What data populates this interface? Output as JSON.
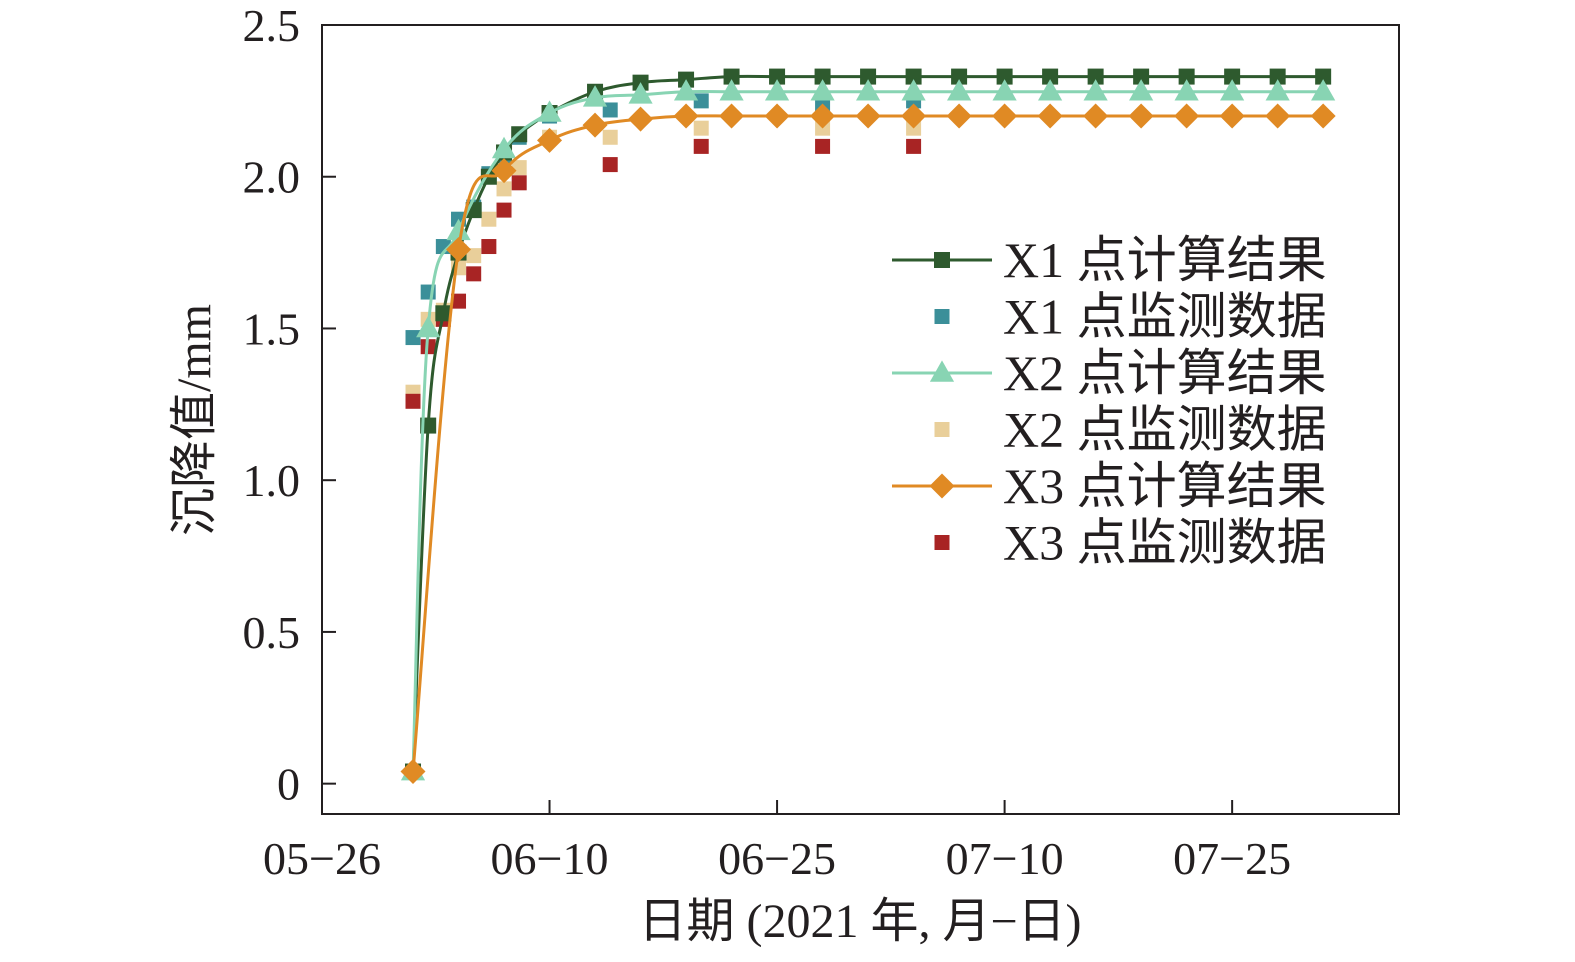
{
  "chart_data": {
    "type": "line",
    "xlabel": "日期 (2021 年, 月−日)",
    "ylabel": "沉降值/mm",
    "x_ticks": [
      "05−26",
      "06−10",
      "06−25",
      "07−10",
      "07−25"
    ],
    "y_ticks": [
      "0",
      "0.5",
      "1.0",
      "1.5",
      "2.0",
      "2.5"
    ],
    "xlim": [
      "2021-05-26",
      "2021-08-05"
    ],
    "ylim": [
      -0.1,
      2.5
    ],
    "grid": false,
    "legend_position": "right",
    "series": [
      {
        "name": "X1 点计算结果",
        "kind": "line",
        "marker": "square",
        "color": "#2e5a2e",
        "x": [
          "2021-06-01",
          "2021-06-02",
          "2021-06-03",
          "2021-06-04",
          "2021-06-05",
          "2021-06-06",
          "2021-06-07",
          "2021-06-08",
          "2021-06-10",
          "2021-06-13",
          "2021-06-16",
          "2021-06-19",
          "2021-06-22",
          "2021-06-25",
          "2021-06-28",
          "2021-07-01",
          "2021-07-04",
          "2021-07-07",
          "2021-07-10",
          "2021-07-13",
          "2021-07-16",
          "2021-07-19",
          "2021-07-22",
          "2021-07-25",
          "2021-07-28",
          "2021-07-31"
        ],
        "values": [
          0.04,
          1.18,
          1.55,
          1.75,
          1.89,
          2.0,
          2.08,
          2.14,
          2.21,
          2.28,
          2.31,
          2.32,
          2.33,
          2.33,
          2.33,
          2.33,
          2.33,
          2.33,
          2.33,
          2.33,
          2.33,
          2.33,
          2.33,
          2.33,
          2.33,
          2.33
        ]
      },
      {
        "name": "X1 点监测数据",
        "kind": "points",
        "marker": "square",
        "color": "#3b8f99",
        "x": [
          "2021-06-01",
          "2021-06-02",
          "2021-06-03",
          "2021-06-04",
          "2021-06-05",
          "2021-06-06",
          "2021-06-07",
          "2021-06-08",
          "2021-06-10",
          "2021-06-14",
          "2021-06-20",
          "2021-06-28",
          "2021-07-04"
        ],
        "values": [
          1.47,
          1.62,
          1.77,
          1.86,
          1.9,
          2.01,
          2.07,
          2.13,
          2.2,
          2.22,
          2.25,
          2.24,
          2.25
        ]
      },
      {
        "name": "X2 点计算结果",
        "kind": "line",
        "marker": "triangle",
        "color": "#88d4b3",
        "x": [
          "2021-06-01",
          "2021-06-02",
          "2021-06-04",
          "2021-06-07",
          "2021-06-10",
          "2021-06-13",
          "2021-06-16",
          "2021-06-19",
          "2021-06-22",
          "2021-06-25",
          "2021-06-28",
          "2021-07-01",
          "2021-07-04",
          "2021-07-07",
          "2021-07-10",
          "2021-07-13",
          "2021-07-16",
          "2021-07-19",
          "2021-07-22",
          "2021-07-25",
          "2021-07-28",
          "2021-07-31"
        ],
        "values": [
          0.04,
          1.5,
          1.82,
          2.09,
          2.21,
          2.26,
          2.27,
          2.28,
          2.28,
          2.28,
          2.28,
          2.28,
          2.28,
          2.28,
          2.28,
          2.28,
          2.28,
          2.28,
          2.28,
          2.28,
          2.28,
          2.28
        ]
      },
      {
        "name": "X2 点监测数据",
        "kind": "points",
        "marker": "square",
        "color": "#e9cf9a",
        "x": [
          "2021-06-01",
          "2021-06-02",
          "2021-06-03",
          "2021-06-04",
          "2021-06-05",
          "2021-06-06",
          "2021-06-07",
          "2021-06-08",
          "2021-06-10",
          "2021-06-14",
          "2021-06-20",
          "2021-06-28",
          "2021-07-04"
        ],
        "values": [
          1.29,
          1.53,
          1.56,
          1.7,
          1.74,
          1.86,
          1.96,
          2.03,
          2.13,
          2.13,
          2.16,
          2.16,
          2.16
        ]
      },
      {
        "name": "X3 点计算结果",
        "kind": "line",
        "marker": "diamond",
        "color": "#e08a24",
        "x": [
          "2021-06-01",
          "2021-06-04",
          "2021-06-07",
          "2021-06-10",
          "2021-06-13",
          "2021-06-16",
          "2021-06-19",
          "2021-06-22",
          "2021-06-25",
          "2021-06-28",
          "2021-07-01",
          "2021-07-04",
          "2021-07-07",
          "2021-07-10",
          "2021-07-13",
          "2021-07-16",
          "2021-07-19",
          "2021-07-22",
          "2021-07-25",
          "2021-07-28",
          "2021-07-31"
        ],
        "values": [
          0.04,
          1.76,
          2.02,
          2.12,
          2.17,
          2.19,
          2.2,
          2.2,
          2.2,
          2.2,
          2.2,
          2.2,
          2.2,
          2.2,
          2.2,
          2.2,
          2.2,
          2.2,
          2.2,
          2.2,
          2.2
        ]
      },
      {
        "name": "X3 点监测数据",
        "kind": "points",
        "marker": "square",
        "color": "#a82424",
        "x": [
          "2021-06-01",
          "2021-06-02",
          "2021-06-03",
          "2021-06-04",
          "2021-06-05",
          "2021-06-06",
          "2021-06-07",
          "2021-06-08",
          "2021-06-14",
          "2021-06-20",
          "2021-06-28",
          "2021-07-04"
        ],
        "values": [
          1.26,
          1.44,
          1.53,
          1.59,
          1.68,
          1.77,
          1.89,
          1.98,
          2.04,
          2.1,
          2.1,
          2.1
        ]
      }
    ]
  }
}
